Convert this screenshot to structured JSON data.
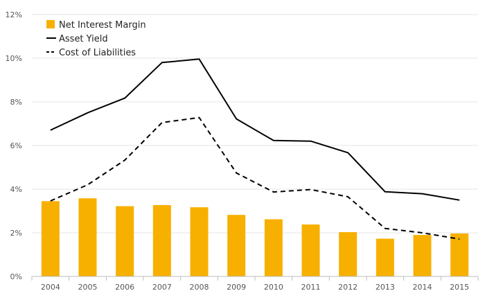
{
  "chart_data": {
    "type": "bar",
    "title": "",
    "xlabel": "",
    "ylabel": "",
    "categories": [
      "2004",
      "2005",
      "2006",
      "2007",
      "2008",
      "2009",
      "2010",
      "2011",
      "2012",
      "2013",
      "2014",
      "2015"
    ],
    "ylim": [
      0,
      12
    ],
    "yticks": [
      0,
      2,
      4,
      6,
      8,
      10,
      12
    ],
    "ytick_labels": [
      "0%",
      "2%",
      "4%",
      "6%",
      "8%",
      "10%",
      "12%"
    ],
    "grid": true,
    "legend_position": "top-left",
    "series": [
      {
        "name": "Net Interest Margin",
        "type": "bar",
        "color": "#F7B000",
        "values": [
          3.45,
          3.58,
          3.22,
          3.27,
          3.17,
          2.82,
          2.62,
          2.38,
          2.03,
          1.73,
          1.9,
          1.97
        ]
      },
      {
        "name": "Asset Yield",
        "type": "line",
        "style": "solid",
        "color": "#000000",
        "values": [
          6.7,
          7.5,
          8.17,
          9.8,
          9.96,
          7.22,
          6.23,
          6.2,
          5.67,
          3.88,
          3.79,
          3.5
        ]
      },
      {
        "name": "Cost of Liabilities",
        "type": "line",
        "style": "dashed",
        "color": "#000000",
        "values": [
          3.46,
          4.2,
          5.33,
          7.05,
          7.28,
          4.74,
          3.87,
          3.98,
          3.65,
          2.2,
          2.0,
          1.71
        ]
      }
    ]
  }
}
